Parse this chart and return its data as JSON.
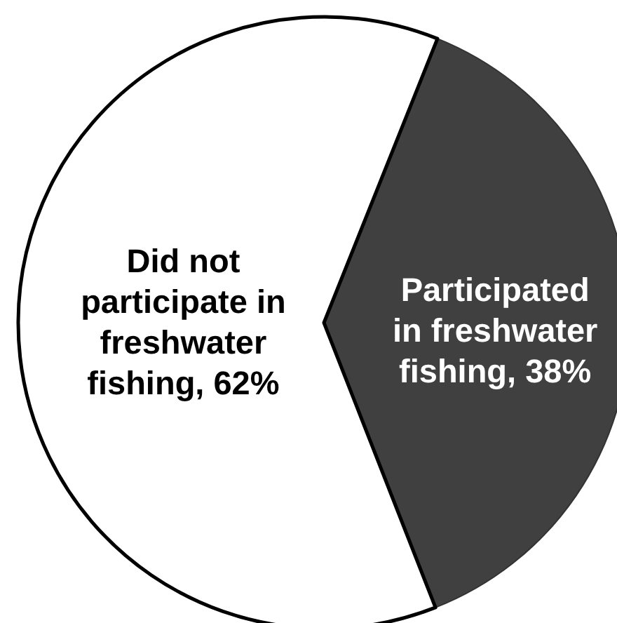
{
  "chart_data": {
    "type": "pie",
    "categories": [
      "Did not participate in freshwater fishing",
      "Participated in freshwater fishing"
    ],
    "values": [
      62,
      38
    ],
    "colors": [
      "#ffffff",
      "#404040"
    ],
    "value_labels": [
      "62%",
      "38%"
    ]
  }
}
